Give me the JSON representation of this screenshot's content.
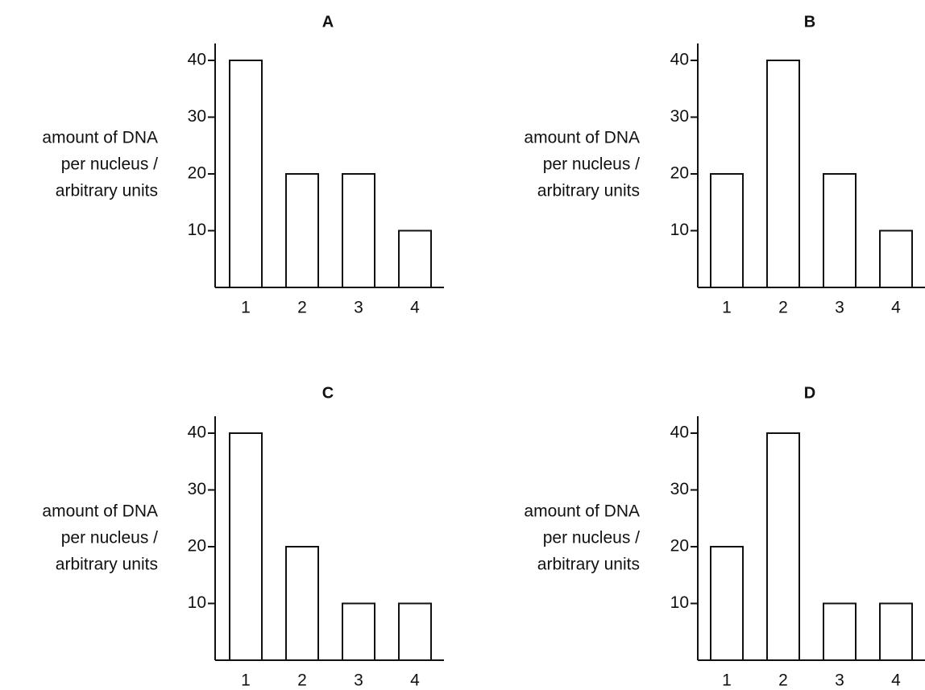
{
  "chart_data": [
    {
      "type": "bar",
      "title": "A",
      "categories": [
        "1",
        "2",
        "3",
        "4"
      ],
      "values": [
        40,
        20,
        20,
        10
      ],
      "ylabel": [
        "amount of DNA",
        "per nucleus /",
        "arbitrary units"
      ],
      "yticks": [
        "10",
        "20",
        "30",
        "40"
      ],
      "ylim": [
        0,
        40
      ],
      "grid": false
    },
    {
      "type": "bar",
      "title": "B",
      "categories": [
        "1",
        "2",
        "3",
        "4"
      ],
      "values": [
        20,
        40,
        20,
        10
      ],
      "ylabel": [
        "amount of DNA",
        "per nucleus /",
        "arbitrary units"
      ],
      "yticks": [
        "10",
        "20",
        "30",
        "40"
      ],
      "ylim": [
        0,
        40
      ],
      "grid": false
    },
    {
      "type": "bar",
      "title": "C",
      "categories": [
        "1",
        "2",
        "3",
        "4"
      ],
      "values": [
        40,
        20,
        10,
        10
      ],
      "ylabel": [
        "amount of DNA",
        "per nucleus /",
        "arbitrary units"
      ],
      "yticks": [
        "10",
        "20",
        "30",
        "40"
      ],
      "ylim": [
        0,
        40
      ],
      "grid": false
    },
    {
      "type": "bar",
      "title": "D",
      "categories": [
        "1",
        "2",
        "3",
        "4"
      ],
      "values": [
        20,
        40,
        10,
        10
      ],
      "ylabel": [
        "amount of DNA",
        "per nucleus /",
        "arbitrary units"
      ],
      "yticks": [
        "10",
        "20",
        "30",
        "40"
      ],
      "ylim": [
        0,
        40
      ],
      "grid": false
    }
  ]
}
